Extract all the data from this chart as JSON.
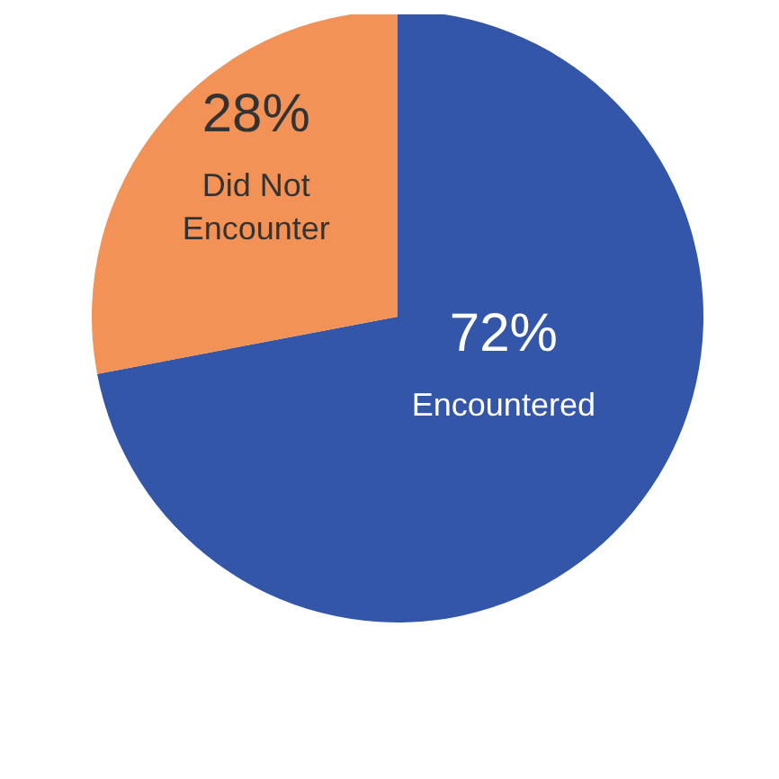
{
  "chart_data": {
    "type": "pie",
    "categories": [
      "Encountered",
      "Did Not Encounter"
    ],
    "values": [
      72,
      28
    ],
    "value_labels": [
      "72%",
      "28%"
    ],
    "colors": [
      "#3356a8",
      "#f29257"
    ]
  }
}
